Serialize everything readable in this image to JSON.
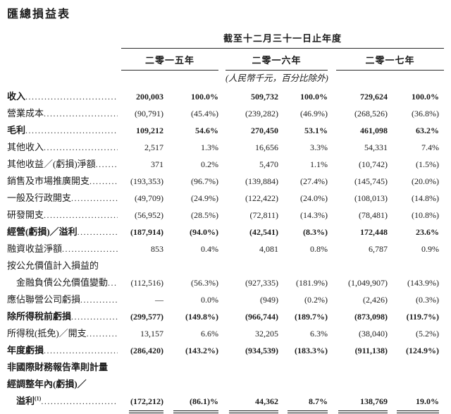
{
  "title": "匯總損益表",
  "table": {
    "period_header": "截至十二月三十一日止年度",
    "unit_note": "(人民幣千元，百分比除外)",
    "year_headers": [
      "二零一五年",
      "二零一六年",
      "二零一七年"
    ],
    "rows": [
      {
        "label": "收入",
        "bold": true,
        "dots": true,
        "values": [
          "200,003",
          "100.0%",
          "509,732",
          "100.0%",
          "729,624",
          "100.0%"
        ]
      },
      {
        "label": "營業成本",
        "bold": false,
        "dots": true,
        "values": [
          "(90,791)",
          "(45.4%)",
          "(239,282)",
          "(46.9%)",
          "(268,526)",
          "(36.8%)"
        ]
      },
      {
        "label": "毛利",
        "bold": true,
        "dots": true,
        "values": [
          "109,212",
          "54.6%",
          "270,450",
          "53.1%",
          "461,098",
          "63.2%"
        ]
      },
      {
        "label": "其他收入",
        "bold": false,
        "dots": true,
        "values": [
          "2,517",
          "1.3%",
          "16,656",
          "3.3%",
          "54,331",
          "7.4%"
        ]
      },
      {
        "label": "其他收益／(虧損)淨額",
        "bold": false,
        "dots": true,
        "values": [
          "371",
          "0.2%",
          "5,470",
          "1.1%",
          "(10,742)",
          "(1.5%)"
        ]
      },
      {
        "label": "銷售及市場推廣開支",
        "bold": false,
        "dots": true,
        "values": [
          "(193,353)",
          "(96.7%)",
          "(139,884)",
          "(27.4%)",
          "(145,745)",
          "(20.0%)"
        ]
      },
      {
        "label": "一般及行政開支",
        "bold": false,
        "dots": true,
        "values": [
          "(49,709)",
          "(24.9%)",
          "(122,422)",
          "(24.0%)",
          "(108,013)",
          "(14.8%)"
        ]
      },
      {
        "label": "研發開支",
        "bold": false,
        "dots": true,
        "values": [
          "(56,952)",
          "(28.5%)",
          "(72,811)",
          "(14.3%)",
          "(78,481)",
          "(10.8%)"
        ]
      },
      {
        "label": "經營(虧損)／溢利",
        "bold": true,
        "dots": true,
        "values": [
          "(187,914)",
          "(94.0%)",
          "(42,541)",
          "(8.3%)",
          "172,448",
          "23.6%"
        ]
      },
      {
        "label": "融資收益淨額",
        "bold": false,
        "dots": true,
        "values": [
          "853",
          "0.4%",
          "4,081",
          "0.8%",
          "6,787",
          "0.9%"
        ]
      },
      {
        "label": "按公允價值計入損益的",
        "bold": false,
        "dots": false,
        "values": null
      },
      {
        "label": "金融負債公允價值變動",
        "bold": false,
        "indent": true,
        "dots": true,
        "values": [
          "(112,516)",
          "(56.3%)",
          "(927,335)",
          "(181.9%)",
          "(1,049,907)",
          "(143.9%)"
        ]
      },
      {
        "label": "應佔聯營公司虧損",
        "bold": false,
        "dots": true,
        "values": [
          "—",
          "0.0%",
          "(949)",
          "(0.2%)",
          "(2,426)",
          "(0.3%)"
        ]
      },
      {
        "label": "除所得稅前虧損",
        "bold": true,
        "dots": true,
        "values": [
          "(299,577)",
          "(149.8%)",
          "(966,744)",
          "(189.7%)",
          "(873,098)",
          "(119.7%)"
        ]
      },
      {
        "label": "所得稅(抵免)／開支",
        "bold": false,
        "dots": true,
        "values": [
          "13,157",
          "6.6%",
          "32,205",
          "6.3%",
          "(38,040)",
          "(5.2%)"
        ]
      },
      {
        "label": "年度虧損",
        "bold": true,
        "dots": true,
        "values": [
          "(286,420)",
          "(143.2%)",
          "(934,539)",
          "(183.3%)",
          "(911,138)",
          "(124.9%)"
        ]
      },
      {
        "label": "非國際財務報告準則計量",
        "bold": true,
        "dots": false,
        "values": null
      },
      {
        "label": "經調整年內(虧損)／",
        "bold": true,
        "dots": false,
        "values": null
      },
      {
        "label": "溢利",
        "sup": "(1)",
        "bold": true,
        "indent": true,
        "dots": true,
        "underline": true,
        "values": [
          "(172,212)",
          "(86.1)%",
          "44,362",
          "8.7%",
          "138,769",
          "19.0%"
        ]
      }
    ]
  }
}
